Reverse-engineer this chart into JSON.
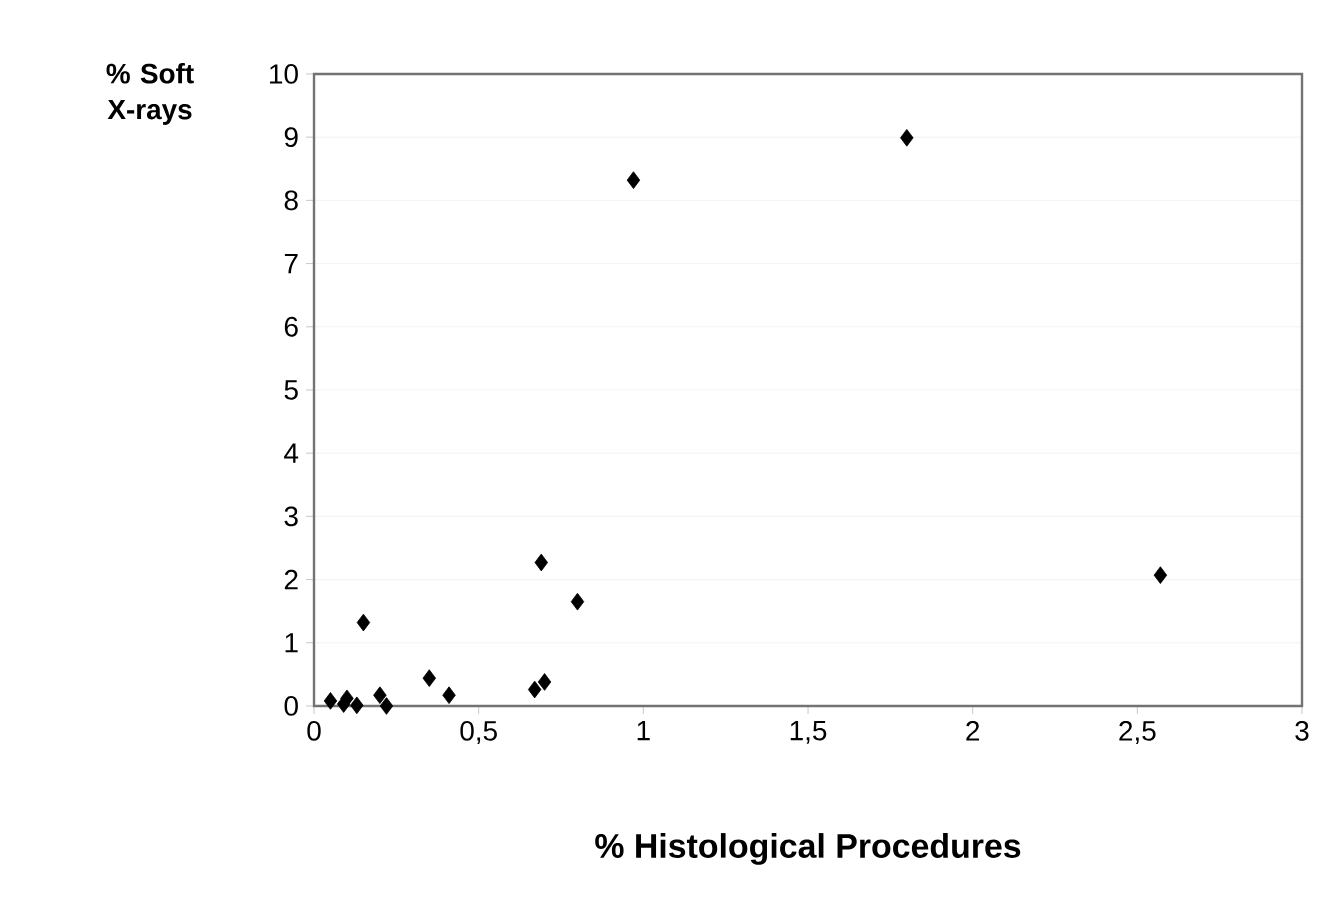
{
  "chart_data": {
    "type": "scatter",
    "xlabel": "% Histological Procedures",
    "ylabel": "% Soft X-rays",
    "x": [
      0.05,
      0.09,
      0.1,
      0.13,
      0.15,
      0.2,
      0.22,
      0.35,
      0.41,
      0.67,
      0.7,
      0.69,
      0.8,
      0.97,
      1.8,
      2.57
    ],
    "series": [
      {
        "color": "#000000",
        "values": [
          0.08,
          0.03,
          0.12,
          0.01,
          1.32,
          0.17,
          0.0,
          0.44,
          0.17,
          0.26,
          0.38,
          2.27,
          1.65,
          8.32,
          8.99,
          2.07
        ]
      }
    ],
    "xlim": [
      0,
      3
    ],
    "ylim": [
      0,
      10
    ],
    "xticks": [
      0,
      {
        "value": 0.5,
        "label": "0,5"
      },
      1,
      {
        "value": 1.5,
        "label": "1,5"
      },
      2,
      {
        "value": 2.5,
        "label": "2,5"
      },
      3
    ],
    "yticks": [
      0,
      1,
      2,
      3,
      4,
      5,
      6,
      7,
      8,
      9,
      10
    ],
    "grid": "y",
    "marker": "diamond"
  }
}
